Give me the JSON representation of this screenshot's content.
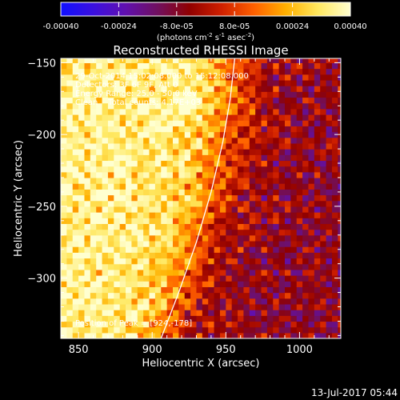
{
  "colorbar": {
    "ticks": [
      "-0.00040",
      "-0.00024",
      "-8.0e-05",
      "8.0e-05",
      "0.00024",
      "0.00040"
    ],
    "unit_main": "(photons cm",
    "unit_sup1": "-2",
    "unit_mid": " s",
    "unit_sup2": "-1",
    "unit_tail": " asec",
    "unit_sup3": "-2",
    "unit_close": ")",
    "colors": [
      "#1010ff",
      "#3a10e0",
      "#6010b0",
      "#701060",
      "#900000",
      "#d02000",
      "#ff6000",
      "#ffb000",
      "#ffe860",
      "#ffffd0"
    ]
  },
  "chart_data": {
    "type": "heatmap",
    "title": "Reconstructed RHESSI Image",
    "xlabel": "Heliocentric X (arcsec)",
    "ylabel": "Heliocentric Y (arcsec)",
    "xlim": [
      838,
      1028
    ],
    "ylim": [
      -342,
      -147
    ],
    "x_ticks": [
      850,
      900,
      950,
      1000
    ],
    "y_ticks": [
      -150,
      -200,
      -250,
      -300
    ],
    "x_tick_labels": [
      "850",
      "900",
      "950",
      "1000"
    ],
    "y_tick_labels": [
      "−150",
      "−200",
      "−250",
      "−300"
    ],
    "value_range": [
      -0.0004,
      0.0004
    ],
    "grid_step_arcsec": 4,
    "limb_curve": [
      [
        906,
        -342
      ],
      [
        918,
        -310
      ],
      [
        930,
        -275
      ],
      [
        940,
        -240
      ],
      [
        948,
        -205
      ],
      [
        953,
        -175
      ],
      [
        956,
        -147
      ]
    ],
    "annotations": {
      "time_range": "29-Oct-2014 15:02:08.000 to 15:12:08.000",
      "detectors": "Detectors: 3F 6F 9F, Att 0",
      "energy": "Energy Range: 25.0 - 50.0 keV",
      "clean": "Clean    Total counts: 4.17E+03",
      "peak": "Position of Peak = [924,-178]"
    },
    "peak": [
      924,
      -178
    ]
  },
  "footer": {
    "date": "13-Jul-2017 05:44"
  }
}
